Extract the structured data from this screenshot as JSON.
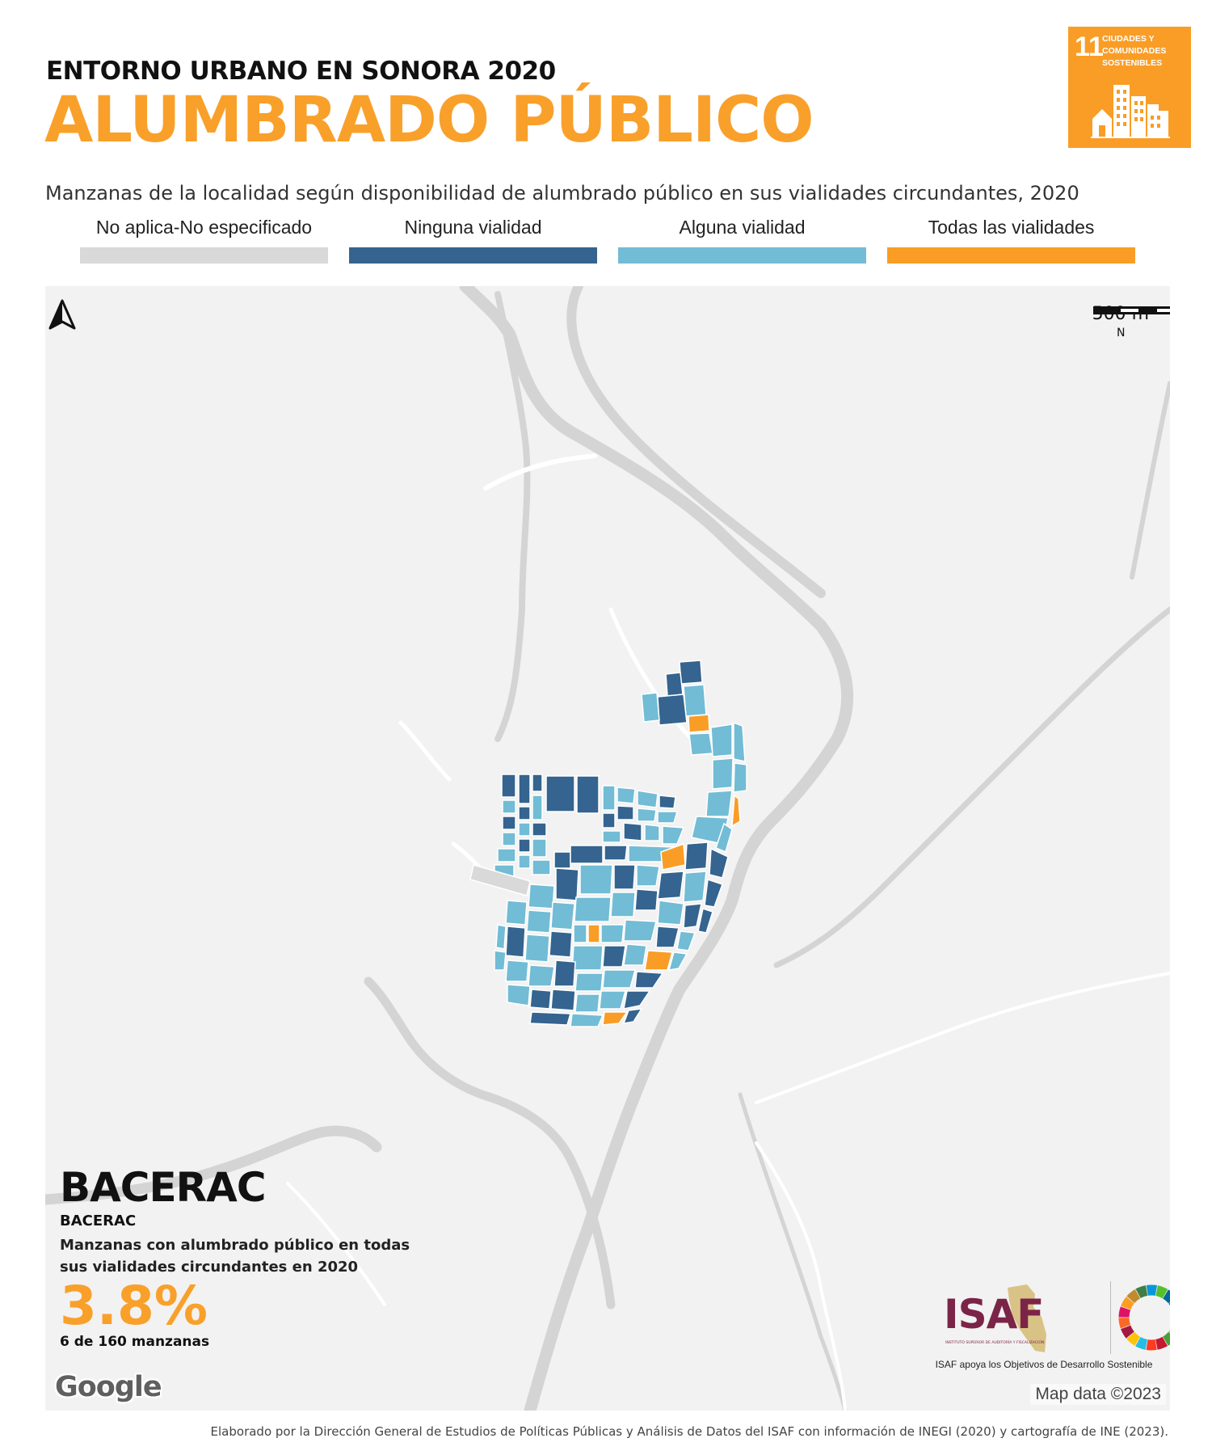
{
  "header": {
    "pre_title": "ENTORNO URBANO EN SONORA 2020",
    "title": "ALUMBRADO PÚBLICO",
    "subtitle": "Manzanas de la localidad según disponibilidad de alumbrado público en sus vialidades circundantes, 2020"
  },
  "sdg_badge": {
    "number": "11",
    "line1": "CIUDADES Y",
    "line2": "COMUNIDADES",
    "line3": "SOSTENIBLES",
    "color": "#f99d26"
  },
  "legend": [
    {
      "label": "No aplica-No especificado",
      "color": "#d9d9d9"
    },
    {
      "label": "Ninguna vialidad",
      "color": "#34648f"
    },
    {
      "label": "Alguna vialidad",
      "color": "#72bcd5"
    },
    {
      "label": "Todas las vialidades",
      "color": "#f99d26"
    }
  ],
  "map": {
    "scale_label": "500 m",
    "north_label": "N",
    "attribution": "Map data ©2023",
    "provider": "Google",
    "background_color": "#f2f2f2",
    "river_color": "#d4d4d4",
    "road_color": "#ffffff"
  },
  "info": {
    "municipality": "BACERAC",
    "locality": "BACERAC",
    "description": "Manzanas con alumbrado público en todas sus vialidades circundantes en 2020",
    "percent": "3.8%",
    "count": "6 de 160 manzanas"
  },
  "isaf": {
    "logo_text": "ISAF",
    "logo_small": "INSTITUTO SUPERIOR DE AUDITORÍA Y FISCALIZACIÓN",
    "caption": "ISAF apoya los Objetivos de Desarrollo Sostenible"
  },
  "credits": "Elaborado por la Dirección General de Estudios de Políticas Públicas y Análisis de Datos del ISAF con información de INEGI (2020) y cartografía de INE (2023)."
}
